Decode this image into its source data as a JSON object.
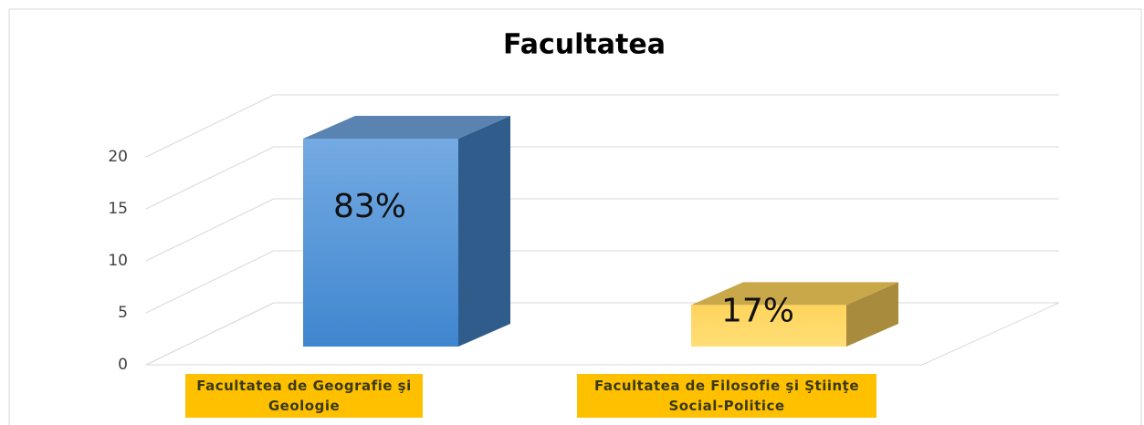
{
  "chart_data": {
    "type": "bar3d",
    "title": "Facultatea",
    "categories": [
      "Facultatea de Geografie şi Geologie",
      "Facultatea de Filosofie şi Ştiinţe Social-Politice"
    ],
    "values": [
      20,
      4
    ],
    "value_labels": [
      "83%",
      "17%"
    ],
    "colors": [
      "#4a90d9",
      "#ffd966"
    ],
    "ylim": [
      0,
      20
    ],
    "yticks": [
      0,
      5,
      10,
      15,
      20
    ],
    "grid": true
  }
}
